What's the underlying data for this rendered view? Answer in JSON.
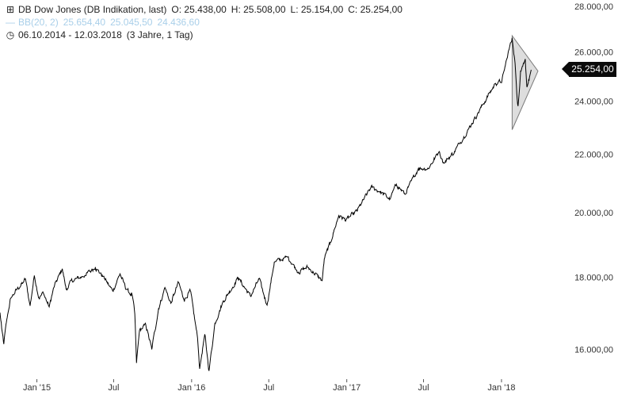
{
  "header": {
    "instrument": "DB Dow Jones (DB Indikation, last)",
    "open": "O: 25.438,00",
    "high": "H: 25.508,00",
    "low": "L: 25.154,00",
    "close": "C: 25.254,00",
    "indicator_name": "BB(20, 2)",
    "indicator_upper": "25.654,40",
    "indicator_middle": "25.045,50",
    "indicator_lower": "24.436,60",
    "date_range": "06.10.2014 - 12.03.2018",
    "period": "(3 Jahre, 1 Tag)"
  },
  "last_price": "25.254,00",
  "colors": {
    "line": "#000000",
    "bollinger": "#a9cfe9",
    "badge": "#0b0b0b",
    "triangle_fill": "#d9d9d9"
  },
  "chart_data": {
    "type": "line",
    "title": "DB Dow Jones (DB Indikation, last)",
    "x_ticks": [
      "Jan '15",
      "Jul",
      "Jan '16",
      "Jul",
      "Jan '17",
      "Jul",
      "Jan '18"
    ],
    "y_ticks": [
      "16.000,00",
      "18.000,00",
      "20.000,00",
      "22.000,00",
      "24.000,00",
      "26.000,00",
      "28.000,00"
    ],
    "ylim": [
      15400,
      28300
    ],
    "xlim": [
      "2014-10-06",
      "2018-05-10"
    ],
    "y_scale": "log",
    "grid": false,
    "series": [
      {
        "values": [
          [
            "2014-10-06",
            16990
          ],
          [
            "2014-10-10",
            16550
          ],
          [
            "2014-10-15",
            16140
          ],
          [
            "2014-10-22",
            16800
          ],
          [
            "2014-10-31",
            17390
          ],
          [
            "2014-11-14",
            17630
          ],
          [
            "2014-11-28",
            17820
          ],
          [
            "2014-12-05",
            17950
          ],
          [
            "2014-12-16",
            17180
          ],
          [
            "2014-12-26",
            18050
          ],
          [
            "2015-01-06",
            17400
          ],
          [
            "2015-01-16",
            17550
          ],
          [
            "2015-01-30",
            17150
          ],
          [
            "2015-02-10",
            17700
          ],
          [
            "2015-03-02",
            18250
          ],
          [
            "2015-03-11",
            17650
          ],
          [
            "2015-03-25",
            17900
          ],
          [
            "2015-04-24",
            18050
          ],
          [
            "2015-05-19",
            18300
          ],
          [
            "2015-06-10",
            17950
          ],
          [
            "2015-06-29",
            17600
          ],
          [
            "2015-07-16",
            18100
          ],
          [
            "2015-07-31",
            17650
          ],
          [
            "2015-08-14",
            17470
          ],
          [
            "2015-08-20",
            16950
          ],
          [
            "2015-08-24",
            15650
          ],
          [
            "2015-08-31",
            16500
          ],
          [
            "2015-09-15",
            16650
          ],
          [
            "2015-09-29",
            16000
          ],
          [
            "2015-10-15",
            17100
          ],
          [
            "2015-10-30",
            17700
          ],
          [
            "2015-11-13",
            17250
          ],
          [
            "2015-12-01",
            17850
          ],
          [
            "2015-12-14",
            17350
          ],
          [
            "2015-12-29",
            17600
          ],
          [
            "2016-01-15",
            16300
          ],
          [
            "2016-01-20",
            15500
          ],
          [
            "2016-02-01",
            16400
          ],
          [
            "2016-02-11",
            15450
          ],
          [
            "2016-02-25",
            16700
          ],
          [
            "2016-03-15",
            17300
          ],
          [
            "2016-04-20",
            17980
          ],
          [
            "2016-05-19",
            17450
          ],
          [
            "2016-06-08",
            17950
          ],
          [
            "2016-06-27",
            17200
          ],
          [
            "2016-07-14",
            18450
          ],
          [
            "2016-08-15",
            18600
          ],
          [
            "2016-09-09",
            18150
          ],
          [
            "2016-09-30",
            18300
          ],
          [
            "2016-10-14",
            18150
          ],
          [
            "2016-11-04",
            17900
          ],
          [
            "2016-11-09",
            18550
          ],
          [
            "2016-11-22",
            19000
          ],
          [
            "2016-12-13",
            19900
          ],
          [
            "2016-12-30",
            19760
          ],
          [
            "2017-01-25",
            20050
          ],
          [
            "2017-02-27",
            20850
          ],
          [
            "2017-03-20",
            20700
          ],
          [
            "2017-04-13",
            20450
          ],
          [
            "2017-04-28",
            20950
          ],
          [
            "2017-05-18",
            20610
          ],
          [
            "2017-06-19",
            21500
          ],
          [
            "2017-07-12",
            21500
          ],
          [
            "2017-08-07",
            22100
          ],
          [
            "2017-08-18",
            21680
          ],
          [
            "2017-09-12",
            22100
          ],
          [
            "2017-10-16",
            22950
          ],
          [
            "2017-11-07",
            23550
          ],
          [
            "2017-11-30",
            24200
          ],
          [
            "2017-12-18",
            24700
          ],
          [
            "2018-01-02",
            24800
          ],
          [
            "2018-01-16",
            25900
          ],
          [
            "2018-01-26",
            26600
          ],
          [
            "2018-02-02",
            25520
          ],
          [
            "2018-02-06",
            24300
          ],
          [
            "2018-02-09",
            23800
          ],
          [
            "2018-02-15",
            25200
          ],
          [
            "2018-02-26",
            25700
          ],
          [
            "2018-03-02",
            24550
          ],
          [
            "2018-03-08",
            24950
          ],
          [
            "2018-03-12",
            25254
          ]
        ]
      }
    ],
    "annotation": {
      "type": "triangle",
      "points": [
        [
          "2018-01-26",
          26700
        ],
        [
          "2018-03-28",
          25200
        ],
        [
          "2018-01-26",
          22900
        ]
      ]
    }
  }
}
